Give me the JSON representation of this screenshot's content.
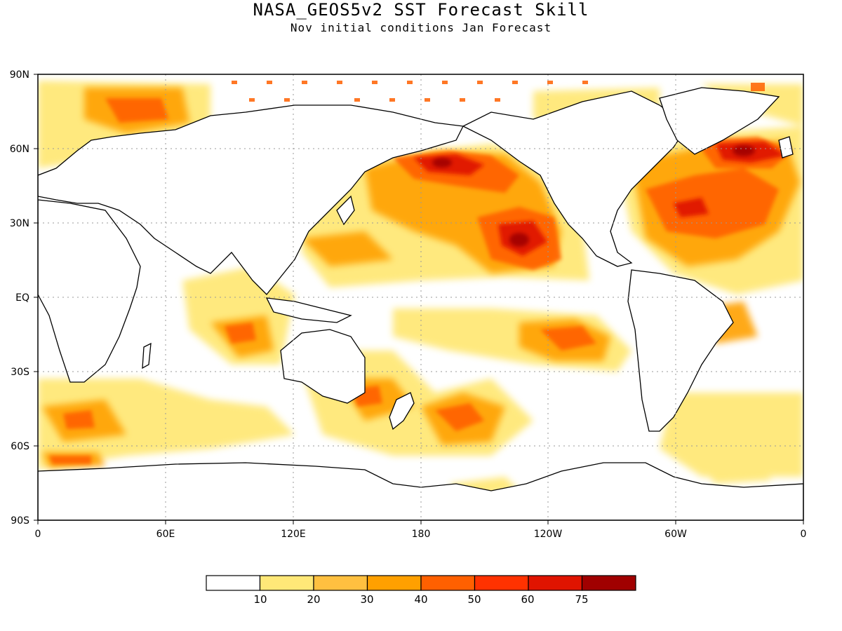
{
  "map": {
    "title": "NASA_GEOS5v2 SST Forecast Skill",
    "subtitle": "Nov initial conditions  Jan Forecast",
    "lat_ticks": [
      "90N",
      "60N",
      "30N",
      "EQ",
      "30S",
      "60S",
      "90S"
    ],
    "lon_ticks": [
      "0",
      "60E",
      "120E",
      "180",
      "120W",
      "60W",
      "0"
    ],
    "colorbar": {
      "colors": [
        "#ffffff",
        "#ffe878",
        "#ffc040",
        "#ffa000",
        "#ff6000",
        "#ff3200",
        "#e01400",
        "#a00000"
      ],
      "labels": [
        "10",
        "20",
        "30",
        "40",
        "50",
        "60",
        "75"
      ]
    }
  }
}
